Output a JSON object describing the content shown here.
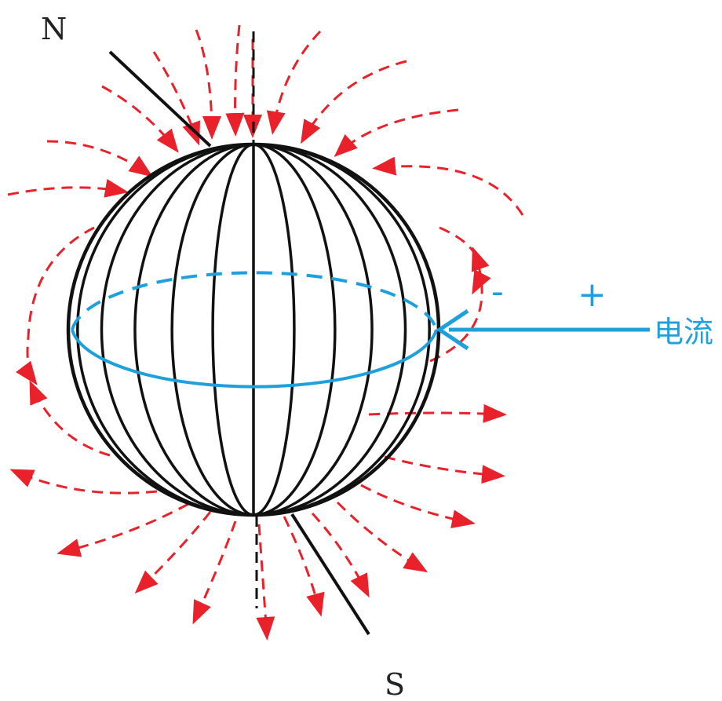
{
  "labels": {
    "north": "N",
    "south": "S",
    "minus": "-",
    "plus": "+",
    "current": "电流"
  },
  "colors": {
    "field_lines": "#e8212b",
    "current": "#1ea0dc",
    "globe": "#111111",
    "axis": "#111111"
  }
}
